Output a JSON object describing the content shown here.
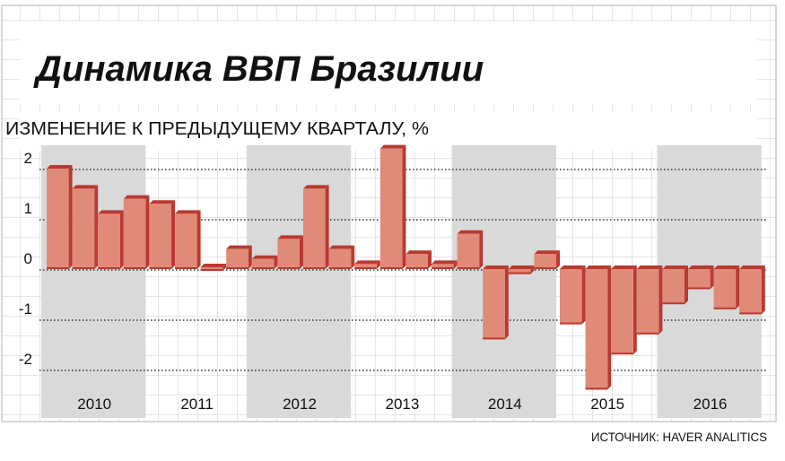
{
  "title": "Динамика ВВП Бразилии",
  "subtitle": "ИЗМЕНЕНИЕ К ПРЕДЫДУЩЕМУ КВАРТАЛУ, %",
  "source": "ИСТОЧНИК: HAVER ANALITICS",
  "colors": {
    "bar_face": "#e08a78",
    "bar_side": "#b83a30",
    "band": "#d9d9d9",
    "grid_paper": "#cccccc",
    "text": "#111111"
  },
  "chart_data": {
    "type": "bar",
    "title": "Динамика ВВП Бразилии",
    "subtitle": "ИЗМЕНЕНИЕ К ПРЕДЫДУЩЕМУ КВАРТАЛУ, %",
    "ylabel": "ИЗМЕНЕНИЕ К ПРЕДЫДУЩЕМУ КВАРТАЛУ, %",
    "xlabel": "",
    "years": [
      "2010",
      "2011",
      "2012",
      "2013",
      "2014",
      "2015",
      "2016"
    ],
    "categories": [
      "2010 Q1",
      "2010 Q2",
      "2010 Q3",
      "2010 Q4",
      "2011 Q1",
      "2011 Q2",
      "2011 Q3",
      "2011 Q4",
      "2012 Q1",
      "2012 Q2",
      "2012 Q3",
      "2012 Q4",
      "2013 Q1",
      "2013 Q2",
      "2013 Q3",
      "2013 Q4",
      "2014 Q1",
      "2014 Q2",
      "2014 Q3",
      "2014 Q4",
      "2015 Q1",
      "2015 Q2",
      "2015 Q3",
      "2015 Q4",
      "2016 Q1",
      "2016 Q2",
      "2016 Q3",
      "2016 Q4"
    ],
    "values": [
      2.0,
      1.6,
      1.1,
      1.4,
      1.3,
      1.1,
      0.0,
      0.4,
      0.2,
      0.6,
      1.6,
      0.4,
      0.1,
      2.4,
      0.3,
      0.1,
      0.7,
      -1.4,
      -0.1,
      0.3,
      -1.1,
      -2.4,
      -1.7,
      -1.3,
      -0.7,
      -0.4,
      -0.8,
      -0.9
    ],
    "yticks": [
      "2",
      "1",
      "0",
      "-1",
      "-2"
    ],
    "ytick_values": [
      2,
      1,
      0,
      -1,
      -2
    ],
    "ylim": [
      -2.6,
      2.6
    ],
    "grid": true
  }
}
